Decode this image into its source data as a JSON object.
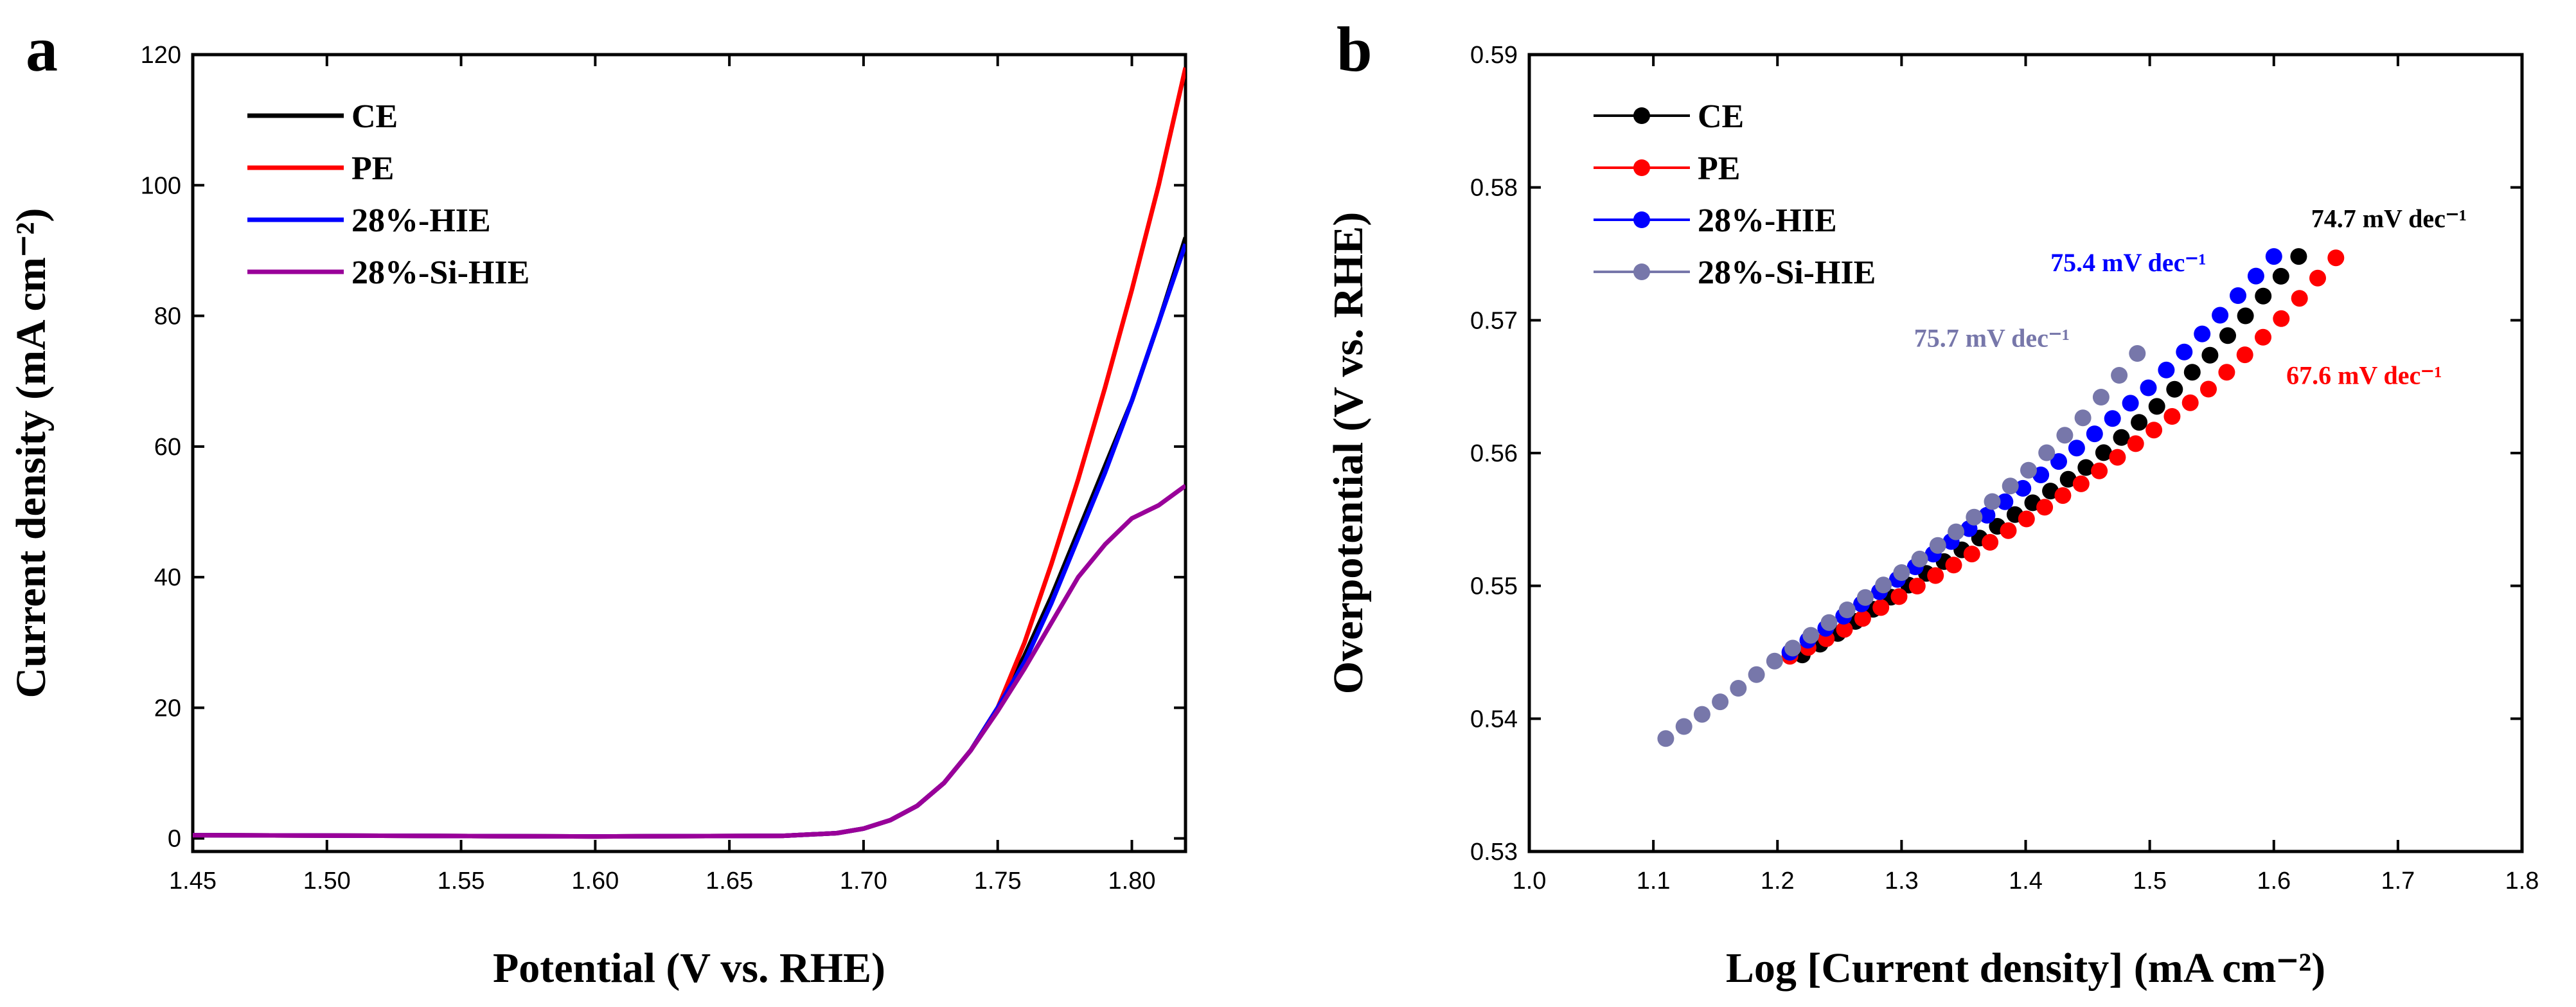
{
  "chart_data": [
    {
      "panel": "a",
      "type": "line",
      "xlabel": "Potential (V vs. RHE)",
      "ylabel": "Current density (mA cm⁻²)",
      "xlim": [
        1.45,
        1.82
      ],
      "ylim": [
        -2,
        120
      ],
      "xticks": [
        "1.45",
        "1.50",
        "1.55",
        "1.60",
        "1.65",
        "1.70",
        "1.75",
        "1.80"
      ],
      "yticks": [
        "0",
        "20",
        "40",
        "60",
        "80",
        "100",
        "120"
      ],
      "legend_position": "top-left",
      "series": [
        {
          "name": "CE",
          "color": "#000000",
          "x": [
            1.45,
            1.6,
            1.67,
            1.69,
            1.7,
            1.71,
            1.72,
            1.73,
            1.74,
            1.75,
            1.76,
            1.77,
            1.78,
            1.79,
            1.8,
            1.81,
            1.82
          ],
          "y": [
            0.5,
            0.3,
            0.4,
            0.8,
            1.5,
            2.8,
            5.0,
            8.5,
            13.5,
            20,
            28,
            37,
            47,
            57,
            67,
            79,
            92
          ]
        },
        {
          "name": "PE",
          "color": "#ff0000",
          "x": [
            1.45,
            1.6,
            1.67,
            1.69,
            1.7,
            1.71,
            1.72,
            1.73,
            1.74,
            1.75,
            1.76,
            1.77,
            1.78,
            1.79,
            1.8,
            1.81,
            1.82
          ],
          "y": [
            0.5,
            0.3,
            0.4,
            0.8,
            1.5,
            2.8,
            5.0,
            8.5,
            13.5,
            20,
            30,
            42,
            55,
            69,
            84,
            100,
            118
          ]
        },
        {
          "name": "28%-HIE",
          "color": "#0000ff",
          "x": [
            1.45,
            1.6,
            1.67,
            1.69,
            1.7,
            1.71,
            1.72,
            1.73,
            1.74,
            1.75,
            1.76,
            1.77,
            1.78,
            1.79,
            1.8,
            1.81,
            1.82
          ],
          "y": [
            0.5,
            0.3,
            0.4,
            0.8,
            1.5,
            2.8,
            5.0,
            8.5,
            13.5,
            20,
            27,
            36,
            46,
            56,
            67,
            79,
            91
          ]
        },
        {
          "name": "28%-Si-HIE",
          "color": "#990099",
          "x": [
            1.45,
            1.6,
            1.67,
            1.69,
            1.7,
            1.71,
            1.72,
            1.73,
            1.74,
            1.75,
            1.76,
            1.77,
            1.78,
            1.79,
            1.8,
            1.81,
            1.82
          ],
          "y": [
            0.5,
            0.3,
            0.4,
            0.8,
            1.5,
            2.8,
            5.0,
            8.5,
            13.5,
            19.5,
            26,
            33,
            40,
            45,
            49,
            51,
            54
          ]
        }
      ]
    },
    {
      "panel": "b",
      "type": "scatter",
      "xlabel": "Log [Current density] (mA cm⁻²)",
      "ylabel": "Overpotential (V vs. RHE)",
      "xlim": [
        1.0,
        1.8
      ],
      "ylim": [
        0.53,
        0.59
      ],
      "xticks": [
        "1.0",
        "1.1",
        "1.2",
        "1.3",
        "1.4",
        "1.5",
        "1.6",
        "1.7",
        "1.8"
      ],
      "yticks": [
        "0.53",
        "0.54",
        "0.55",
        "0.56",
        "0.57",
        "0.58",
        "0.59"
      ],
      "legend_position": "top-left",
      "series": [
        {
          "name": "CE",
          "color": "#000000",
          "x": [
            1.22,
            1.25,
            1.3,
            1.35,
            1.4,
            1.45,
            1.5,
            1.55,
            1.62
          ],
          "y": [
            0.5448,
            0.5465,
            0.5497,
            0.5528,
            0.5559,
            0.559,
            0.563,
            0.5675,
            0.5748
          ]
        },
        {
          "name": "PE",
          "color": "#ff0000",
          "x": [
            1.21,
            1.25,
            1.3,
            1.35,
            1.4,
            1.45,
            1.5,
            1.55,
            1.6,
            1.65
          ],
          "y": [
            0.5447,
            0.5465,
            0.5493,
            0.552,
            0.555,
            0.558,
            0.5615,
            0.565,
            0.5695,
            0.5747
          ]
        },
        {
          "name": "28%-HIE",
          "color": "#0000ff",
          "x": [
            1.21,
            1.25,
            1.3,
            1.35,
            1.4,
            1.45,
            1.5,
            1.55,
            1.6
          ],
          "y": [
            0.545,
            0.5475,
            0.5507,
            0.554,
            0.5575,
            0.561,
            0.565,
            0.5697,
            0.5748
          ]
        },
        {
          "name": "28%-Si-HIE",
          "color": "#7777aa",
          "x": [
            1.11,
            1.15,
            1.2,
            1.25,
            1.3,
            1.35,
            1.4,
            1.45,
            1.49
          ],
          "y": [
            0.5385,
            0.541,
            0.5445,
            0.5478,
            0.551,
            0.5545,
            0.5585,
            0.563,
            0.5675
          ]
        }
      ],
      "annotations": [
        {
          "text": "74.7 mV dec⁻¹",
          "color": "#000000",
          "x": 1.63,
          "y": 0.577
        },
        {
          "text": "75.4 mV dec⁻¹",
          "color": "#0000ff",
          "x": 1.42,
          "y": 0.5737
        },
        {
          "text": "75.7 mV dec⁻¹",
          "color": "#7777aa",
          "x": 1.31,
          "y": 0.568
        },
        {
          "text": "67.6 mV dec⁻¹",
          "color": "#ff0000",
          "x": 1.61,
          "y": 0.5652
        }
      ]
    }
  ]
}
